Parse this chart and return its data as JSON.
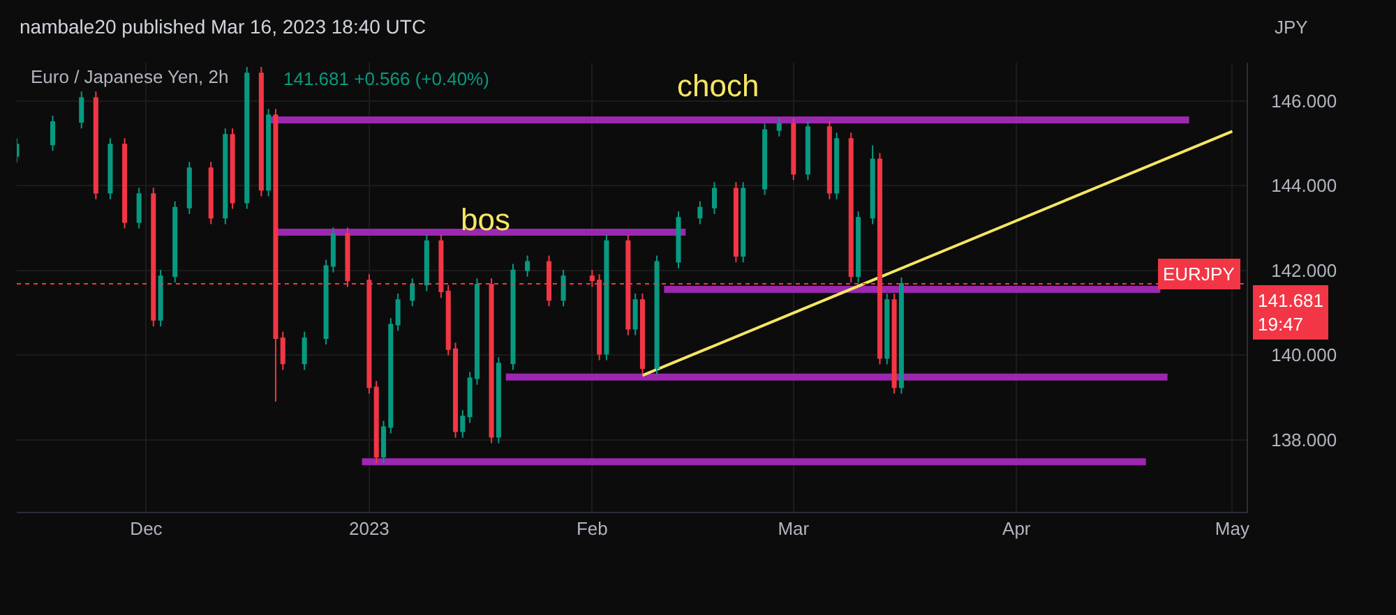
{
  "chart_data": {
    "type": "candlestick",
    "title": "Euro / Japanese Yen, 2h",
    "ylabel": "JPY",
    "annotations": [
      "nambale20 published Mar 16, 2023 18:40 UTC",
      "141.681 +0.566 (+0.40%)",
      "bos",
      "choch",
      "141.681\n19:47"
    ],
    "xlim": [
      "2022-11-13",
      "2023-05-03"
    ],
    "xticks": [
      {
        "value": "2022-12-01",
        "label": "Dec"
      },
      {
        "value": "2023-01-01",
        "label": "2023"
      },
      {
        "value": "2023-02-01",
        "label": "Feb"
      },
      {
        "value": "2023-03-01",
        "label": "Mar"
      },
      {
        "value": "2023-04-01",
        "label": "Apr"
      },
      {
        "value": "2023-05-01",
        "label": "May"
      }
    ],
    "ylim": [
      136.3,
      146.9
    ],
    "yticks": [
      {
        "value": 138,
        "label": "138.000"
      },
      {
        "value": 140,
        "label": "140.000"
      },
      {
        "value": 142,
        "label": "142.000"
      },
      {
        "value": 144,
        "label": "144.000"
      },
      {
        "value": 146,
        "label": "146.000"
      }
    ],
    "grid": true,
    "ref_lines": [
      {
        "axis": "y",
        "value": 141.681,
        "label": "EURJPY",
        "color": "#f23645",
        "line_style": "dotted"
      }
    ],
    "series": [
      {
        "x": [
          "2022-11-13",
          "2022-11-18",
          "2022-11-22",
          "2022-11-24",
          "2022-11-26",
          "2022-11-28",
          "2022-11-30",
          "2022-12-02",
          "2022-12-03",
          "2022-12-05",
          "2022-12-07",
          "2022-12-10",
          "2022-12-12",
          "2022-12-13",
          "2022-12-15",
          "2022-12-17",
          "2022-12-18",
          "2022-12-19",
          "2022-12-20",
          "2022-12-23",
          "2022-12-26",
          "2022-12-27",
          "2022-12-29",
          "2023-01-01",
          "2023-01-02",
          "2023-01-03",
          "2023-01-04",
          "2023-01-05",
          "2023-01-07",
          "2023-01-09",
          "2023-01-11",
          "2023-01-12",
          "2023-01-13",
          "2023-01-14",
          "2023-01-15",
          "2023-01-16",
          "2023-01-18",
          "2023-01-19",
          "2023-01-21",
          "2023-01-23",
          "2023-01-26",
          "2023-01-28",
          "2023-02-01",
          "2023-02-02",
          "2023-02-03",
          "2023-02-06",
          "2023-02-07",
          "2023-02-08",
          "2023-02-10",
          "2023-02-13",
          "2023-02-16",
          "2023-02-18",
          "2023-02-21",
          "2023-02-22",
          "2023-02-25",
          "2023-02-27",
          "2023-03-01",
          "2023-03-03",
          "2023-03-06",
          "2023-03-07",
          "2023-03-09",
          "2023-03-10",
          "2023-03-12",
          "2023-03-13",
          "2023-03-14",
          "2023-03-15",
          "2023-03-16"
        ],
        "ohlc": [
          [
            144.7,
            145.12,
            144.55,
            144.97
          ],
          [
            144.97,
            145.65,
            144.82,
            145.5
          ],
          [
            145.5,
            146.22,
            145.35,
            146.07
          ],
          [
            146.07,
            146.22,
            143.68,
            143.83
          ],
          [
            143.83,
            145.12,
            143.68,
            144.97
          ],
          [
            144.97,
            145.12,
            142.99,
            143.14
          ],
          [
            143.14,
            143.95,
            142.99,
            143.8
          ],
          [
            143.8,
            143.95,
            140.68,
            140.83
          ],
          [
            140.83,
            142.01,
            140.68,
            141.86
          ],
          [
            141.86,
            143.63,
            141.71,
            143.48
          ],
          [
            143.48,
            144.56,
            143.33,
            144.41
          ],
          [
            144.41,
            144.56,
            143.09,
            143.24
          ],
          [
            143.24,
            145.35,
            143.09,
            145.2
          ],
          [
            145.2,
            145.35,
            143.45,
            143.6
          ],
          [
            143.6,
            146.8,
            143.45,
            146.65
          ],
          [
            146.65,
            146.8,
            143.75,
            143.9
          ],
          [
            143.9,
            145.81,
            143.75,
            145.66
          ],
          [
            145.66,
            145.81,
            138.9,
            140.4
          ],
          [
            140.4,
            140.55,
            139.65,
            139.8
          ],
          [
            139.8,
            140.55,
            139.65,
            140.4
          ],
          [
            140.4,
            142.25,
            140.25,
            142.1
          ],
          [
            142.1,
            143.01,
            141.95,
            142.86
          ],
          [
            142.86,
            143.01,
            141.61,
            141.76
          ],
          [
            141.76,
            141.91,
            139.09,
            139.24
          ],
          [
            139.24,
            139.39,
            137.45,
            137.6
          ],
          [
            137.6,
            138.45,
            137.45,
            138.3
          ],
          [
            138.3,
            140.87,
            138.15,
            140.72
          ],
          [
            140.72,
            141.45,
            140.57,
            141.3
          ],
          [
            141.3,
            141.81,
            141.15,
            141.66
          ],
          [
            141.66,
            142.84,
            141.51,
            142.69
          ],
          [
            142.69,
            142.84,
            141.35,
            141.5
          ],
          [
            141.5,
            141.65,
            139.99,
            140.14
          ],
          [
            140.14,
            140.29,
            138.05,
            138.2
          ],
          [
            138.2,
            138.7,
            138.05,
            138.55
          ],
          [
            138.55,
            139.6,
            138.4,
            139.45
          ],
          [
            139.45,
            141.81,
            139.3,
            141.66
          ],
          [
            141.66,
            141.81,
            137.92,
            138.07
          ],
          [
            138.07,
            139.95,
            137.92,
            139.8
          ],
          [
            139.8,
            142.15,
            139.65,
            142.0
          ],
          [
            142.0,
            142.35,
            141.85,
            142.2
          ],
          [
            142.2,
            142.35,
            141.15,
            141.3
          ],
          [
            141.3,
            142.01,
            141.15,
            141.86
          ],
          [
            141.86,
            142.01,
            141.61,
            141.76
          ],
          [
            141.76,
            141.91,
            139.88,
            140.03
          ],
          [
            140.03,
            142.84,
            139.88,
            142.69
          ],
          [
            142.69,
            142.84,
            140.47,
            140.62
          ],
          [
            140.62,
            141.45,
            140.47,
            141.3
          ],
          [
            141.3,
            141.45,
            139.54,
            139.69
          ],
          [
            139.69,
            142.35,
            139.54,
            142.2
          ],
          [
            142.2,
            143.39,
            142.05,
            143.24
          ],
          [
            143.24,
            143.63,
            143.09,
            143.48
          ],
          [
            143.48,
            144.08,
            143.33,
            143.93
          ],
          [
            143.93,
            144.08,
            142.19,
            142.34
          ],
          [
            142.34,
            144.08,
            142.19,
            143.93
          ],
          [
            143.93,
            145.46,
            143.78,
            145.31
          ],
          [
            145.31,
            145.6,
            145.16,
            145.45
          ],
          [
            145.45,
            145.6,
            144.13,
            144.28
          ],
          [
            144.28,
            145.53,
            144.13,
            145.38
          ],
          [
            145.38,
            145.53,
            143.68,
            143.83
          ],
          [
            143.83,
            145.25,
            143.68,
            145.1
          ],
          [
            145.1,
            145.25,
            141.71,
            141.86
          ],
          [
            141.86,
            143.39,
            141.71,
            143.24
          ],
          [
            143.24,
            144.95,
            143.09,
            144.62
          ],
          [
            144.62,
            144.77,
            139.78,
            139.93
          ],
          [
            139.93,
            141.45,
            139.78,
            141.3
          ],
          [
            141.3,
            141.45,
            139.09,
            139.24
          ],
          [
            139.24,
            141.83,
            139.09,
            141.681
          ]
        ],
        "colors": [
          "#089981",
          "#089981",
          "#089981",
          "#f23645",
          "#089981",
          "#f23645",
          "#089981",
          "#f23645",
          "#089981",
          "#089981",
          "#089981",
          "#f23645",
          "#089981",
          "#f23645",
          "#089981",
          "#f23645",
          "#089981",
          "#f23645",
          "#f23645",
          "#089981",
          "#089981",
          "#089981",
          "#f23645",
          "#f23645",
          "#f23645",
          "#089981",
          "#089981",
          "#089981",
          "#089981",
          "#089981",
          "#f23645",
          "#f23645",
          "#f23645",
          "#089981",
          "#089981",
          "#089981",
          "#f23645",
          "#089981",
          "#089981",
          "#089981",
          "#f23645",
          "#089981",
          "#f23645",
          "#f23645",
          "#089981",
          "#f23645",
          "#089981",
          "#f23645",
          "#089981",
          "#089981",
          "#089981",
          "#089981",
          "#f23645",
          "#089981",
          "#089981",
          "#089981",
          "#f23645",
          "#089981",
          "#f23645",
          "#089981",
          "#f23645",
          "#089981",
          "#089981",
          "#f23645",
          "#089981",
          "#f23645",
          "#089981"
        ]
      },
      {
        "type": "line",
        "color": "#9c27b0",
        "x": [
          "2022-12-18",
          "2023-04-25"
        ],
        "values": [
          145.55,
          145.55
        ]
      },
      {
        "type": "line",
        "color": "#9c27b0",
        "x": [
          "2022-12-19",
          "2023-02-14"
        ],
        "values": [
          142.9,
          142.9
        ]
      },
      {
        "type": "line",
        "color": "#9c27b0",
        "x": [
          "2023-02-11",
          "2023-04-21"
        ],
        "values": [
          141.55,
          141.55
        ]
      },
      {
        "type": "line",
        "color": "#9c27b0",
        "x": [
          "2023-01-20",
          "2023-04-22"
        ],
        "values": [
          139.48,
          139.48
        ]
      },
      {
        "type": "line",
        "color": "#9c27b0",
        "x": [
          "2022-12-31",
          "2023-04-19"
        ],
        "values": [
          137.48,
          137.48
        ]
      },
      {
        "type": "line",
        "color": "#f5e663",
        "x": [
          "2023-02-08",
          "2023-05-01"
        ],
        "values": [
          139.52,
          145.28
        ]
      }
    ]
  }
}
